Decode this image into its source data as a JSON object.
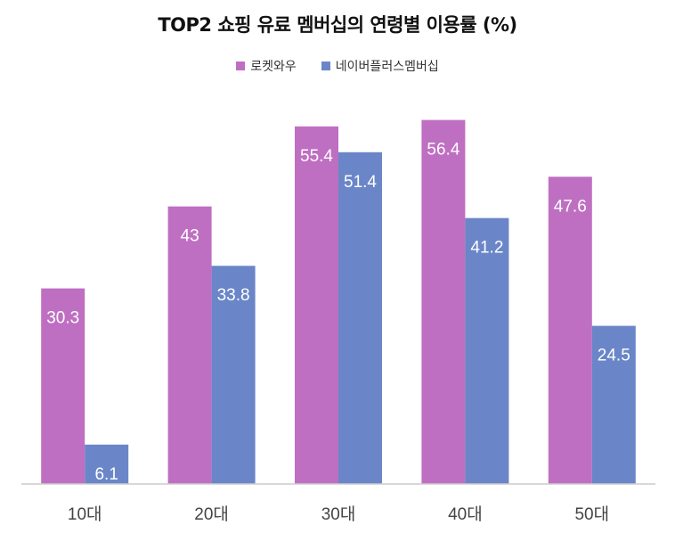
{
  "chart_data": {
    "type": "bar",
    "title": "TOP2 쇼핑 유료 멤버십의 연령별 이용률 (%)",
    "categories": [
      "10대",
      "20대",
      "30대",
      "40대",
      "50대"
    ],
    "series": [
      {
        "name": "로켓와우",
        "color": "#bf6fc2",
        "values": [
          30.3,
          43,
          55.4,
          56.4,
          47.6
        ],
        "labels": [
          "30.3",
          "43",
          "55.4",
          "56.4",
          "47.6"
        ]
      },
      {
        "name": "네이버플러스멤버십",
        "color": "#6a86c8",
        "values": [
          6.1,
          33.8,
          51.4,
          41.2,
          24.5
        ],
        "labels": [
          "6.1",
          "33.8",
          "51.4",
          "41.2",
          "24.5"
        ]
      }
    ],
    "ylim": [
      0,
      58
    ],
    "xlabel": "",
    "ylabel": "",
    "legend_position": "top-center",
    "grid": false
  }
}
